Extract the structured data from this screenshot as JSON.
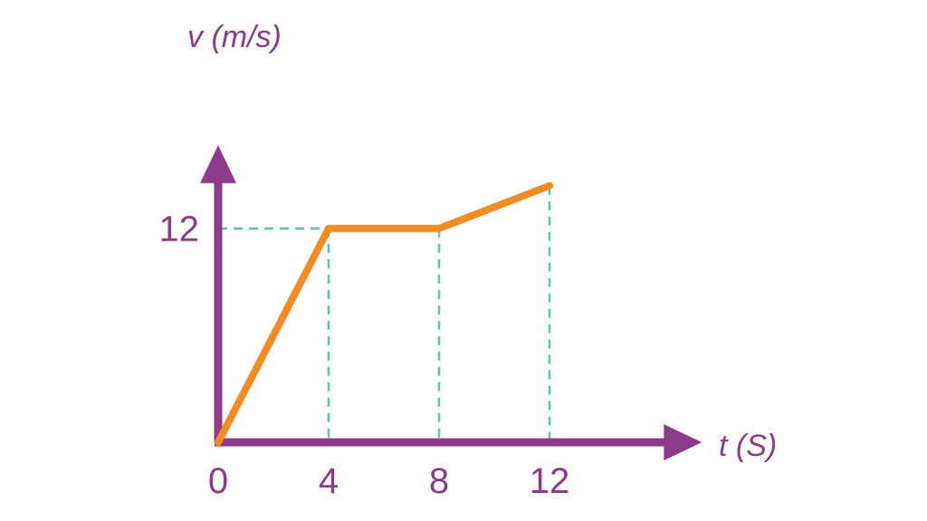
{
  "chart_data": {
    "type": "line",
    "xlabel": "t (S)",
    "ylabel": "v (m/s)",
    "x_ticks": [
      "0",
      "4",
      "8",
      "12"
    ],
    "y_ticks": [
      "12"
    ],
    "x_tick_values": [
      0,
      4,
      8,
      12
    ],
    "y_tick_values": [
      12
    ],
    "xlim": [
      0,
      16.6
    ],
    "ylim": [
      0,
      15
    ],
    "grid": false,
    "series": [
      {
        "x": [
          0,
          4,
          8,
          12
        ],
        "y": [
          0,
          12,
          12,
          14.4
        ]
      }
    ],
    "guides": {
      "vertical_from_points": [
        1,
        2,
        3
      ],
      "horizontal_to_y_axis_from_point": 1
    },
    "colors": {
      "axes": "#8e3a8b",
      "line": "#f28b20",
      "guides": "#4ec7b5"
    }
  }
}
